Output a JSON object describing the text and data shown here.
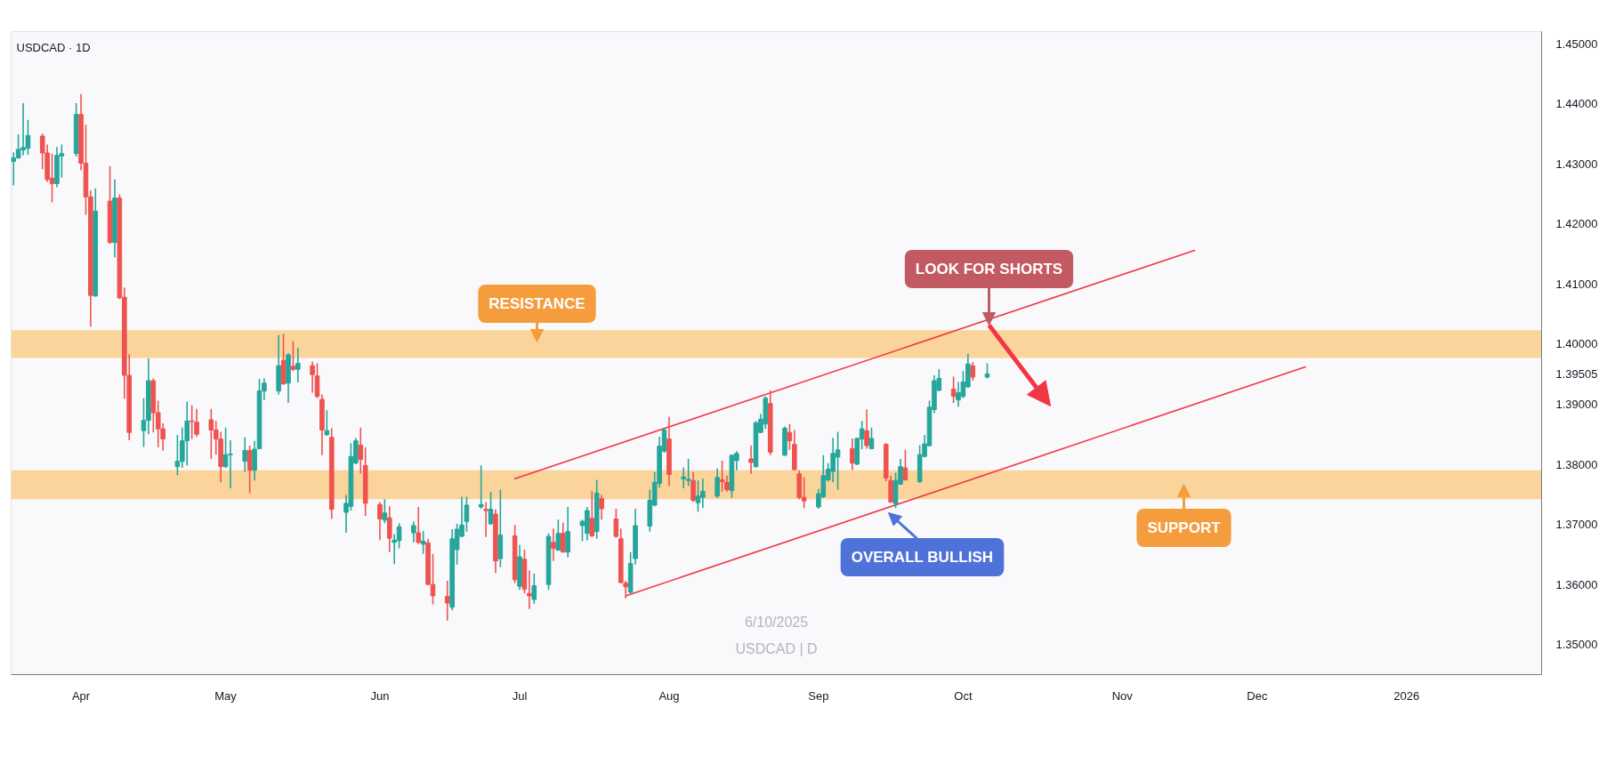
{
  "chart_data": {
    "type": "candlestick",
    "title": "USDCAD · 1D",
    "x": [
      "2025-03-18",
      "2025-03-19",
      "2025-03-20",
      "2025-03-21",
      "2025-03-24",
      "2025-03-25",
      "2025-03-26",
      "2025-03-27",
      "2025-03-28",
      "2025-03-31",
      "2025-04-01",
      "2025-04-02",
      "2025-04-03",
      "2025-04-04",
      "2025-04-07",
      "2025-04-08",
      "2025-04-09",
      "2025-04-10",
      "2025-04-11",
      "2025-04-14",
      "2025-04-15",
      "2025-04-16",
      "2025-04-17",
      "2025-04-18",
      "2025-04-21",
      "2025-04-22",
      "2025-04-23",
      "2025-04-24",
      "2025-04-25",
      "2025-04-28",
      "2025-04-29",
      "2025-04-30",
      "2025-05-01",
      "2025-05-02",
      "2025-05-05",
      "2025-05-06",
      "2025-05-07",
      "2025-05-08",
      "2025-05-09",
      "2025-05-12",
      "2025-05-13",
      "2025-05-14",
      "2025-05-15",
      "2025-05-16",
      "2025-05-19",
      "2025-05-20",
      "2025-05-21",
      "2025-05-22",
      "2025-05-23",
      "2025-05-26",
      "2025-05-27",
      "2025-05-28",
      "2025-05-29",
      "2025-05-30",
      "2025-06-02",
      "2025-06-03",
      "2025-06-04",
      "2025-06-05",
      "2025-06-06",
      "2025-06-09",
      "2025-06-10",
      "2025-06-11",
      "2025-06-12",
      "2025-06-13",
      "2025-06-16",
      "2025-06-17",
      "2025-06-18",
      "2025-06-19",
      "2025-06-20",
      "2025-06-23",
      "2025-06-24",
      "2025-06-25",
      "2025-06-26",
      "2025-06-27",
      "2025-06-30",
      "2025-07-01",
      "2025-07-02",
      "2025-07-03",
      "2025-07-04",
      "2025-07-07",
      "2025-07-08",
      "2025-07-09",
      "2025-07-10",
      "2025-07-11",
      "2025-07-14",
      "2025-07-15",
      "2025-07-16",
      "2025-07-17",
      "2025-07-18",
      "2025-07-21",
      "2025-07-22",
      "2025-07-23",
      "2025-07-24",
      "2025-07-25",
      "2025-07-28",
      "2025-07-29",
      "2025-07-30",
      "2025-07-31",
      "2025-08-01",
      "2025-08-04",
      "2025-08-05",
      "2025-08-06",
      "2025-08-07",
      "2025-08-08",
      "2025-08-11",
      "2025-08-12",
      "2025-08-13",
      "2025-08-14",
      "2025-08-15",
      "2025-08-18",
      "2025-08-19",
      "2025-08-20",
      "2025-08-21",
      "2025-08-22",
      "2025-08-25",
      "2025-08-26",
      "2025-08-27",
      "2025-08-28",
      "2025-08-29",
      "2025-09-01",
      "2025-09-02",
      "2025-09-03",
      "2025-09-04",
      "2025-09-05",
      "2025-09-08",
      "2025-09-09",
      "2025-09-10",
      "2025-09-11",
      "2025-09-12",
      "2025-09-15",
      "2025-09-16",
      "2025-09-17",
      "2025-09-18",
      "2025-09-19",
      "2025-09-22",
      "2025-09-23",
      "2025-09-24",
      "2025-09-25",
      "2025-09-26",
      "2025-09-29",
      "2025-09-30",
      "2025-10-01",
      "2025-10-02",
      "2025-10-03",
      "2025-10-06"
    ],
    "ohlc": [
      [
        1.4304,
        1.4319,
        1.4264,
        1.431
      ],
      [
        1.431,
        1.4349,
        1.4308,
        1.4324
      ],
      [
        1.4323,
        1.4401,
        1.4314,
        1.4327
      ],
      [
        1.4326,
        1.4373,
        1.4315,
        1.4347
      ],
      [
        1.4346,
        1.435,
        1.4291,
        1.4318
      ],
      [
        1.4318,
        1.4332,
        1.427,
        1.4274
      ],
      [
        1.4276,
        1.4317,
        1.4236,
        1.4267
      ],
      [
        1.4267,
        1.4328,
        1.4261,
        1.4314
      ],
      [
        1.4313,
        1.4332,
        1.4277,
        1.4317
      ],
      [
        1.4317,
        1.4401,
        1.4312,
        1.4382
      ],
      [
        1.4382,
        1.4416,
        1.4289,
        1.4301
      ],
      [
        1.4301,
        1.4365,
        1.4215,
        1.4245
      ],
      [
        1.4245,
        1.4256,
        1.4029,
        1.4081
      ],
      [
        1.408,
        1.4259,
        1.4079,
        1.4221
      ],
      [
        1.4238,
        1.4296,
        1.4167,
        1.4169
      ],
      [
        1.4169,
        1.4274,
        1.4144,
        1.4243
      ],
      [
        1.4243,
        1.4249,
        1.4075,
        1.4077
      ],
      [
        1.4078,
        1.4094,
        1.3909,
        1.3948
      ],
      [
        1.3948,
        1.3983,
        1.384,
        1.3853
      ],
      [
        1.3856,
        1.391,
        1.3829,
        1.3873
      ],
      [
        1.3873,
        1.3976,
        1.385,
        1.3939
      ],
      [
        1.3939,
        1.3943,
        1.3853,
        1.3886
      ],
      [
        1.3886,
        1.3906,
        1.3828,
        1.3859
      ],
      [
        1.3859,
        1.3868,
        1.3823,
        1.3842
      ],
      [
        1.3796,
        1.3849,
        1.3782,
        1.3805
      ],
      [
        1.3805,
        1.3861,
        1.3794,
        1.3839
      ],
      [
        1.3839,
        1.3904,
        1.3798,
        1.3872
      ],
      [
        1.3872,
        1.3898,
        1.3842,
        1.3871
      ],
      [
        1.387,
        1.3892,
        1.3846,
        1.385
      ],
      [
        1.3874,
        1.3892,
        1.3809,
        1.3857
      ],
      [
        1.3857,
        1.3872,
        1.3816,
        1.3842
      ],
      [
        1.3842,
        1.3854,
        1.377,
        1.3796
      ],
      [
        1.3796,
        1.3861,
        1.3794,
        1.3816
      ],
      [
        1.3816,
        1.384,
        1.376,
        1.3817
      ],
      [
        1.3805,
        1.3845,
        1.3787,
        1.3823
      ],
      [
        1.3823,
        1.3831,
        1.3752,
        1.379
      ],
      [
        1.379,
        1.3839,
        1.3773,
        1.3825
      ],
      [
        1.3826,
        1.3942,
        1.3825,
        1.3922
      ],
      [
        1.3922,
        1.3943,
        1.3907,
        1.3935
      ],
      [
        1.3922,
        1.4015,
        1.3916,
        1.3964
      ],
      [
        1.3973,
        1.4017,
        1.3932,
        1.3934
      ],
      [
        1.3935,
        1.3985,
        1.3902,
        1.3982
      ],
      [
        1.3963,
        1.4005,
        1.3955,
        1.3958
      ],
      [
        1.3958,
        1.3994,
        1.3936,
        1.3968
      ],
      [
        1.3964,
        1.3971,
        1.3919,
        1.3949
      ],
      [
        1.3947,
        1.3968,
        1.391,
        1.3913
      ],
      [
        1.3908,
        1.3916,
        1.3815,
        1.3857
      ],
      [
        1.3849,
        1.389,
        1.3848,
        1.3856
      ],
      [
        1.3845,
        1.386,
        1.3709,
        1.3725
      ],
      [
        1.372,
        1.3749,
        1.3686,
        1.3735
      ],
      [
        1.373,
        1.3835,
        1.3723,
        1.3813
      ],
      [
        1.3802,
        1.3844,
        1.38,
        1.3839
      ],
      [
        1.3832,
        1.3861,
        1.3785,
        1.3808
      ],
      [
        1.3798,
        1.3828,
        1.3714,
        1.3735
      ],
      [
        1.3733,
        1.3737,
        1.3674,
        1.3709
      ],
      [
        1.3707,
        1.3742,
        1.3702,
        1.3719
      ],
      [
        1.3711,
        1.373,
        1.3654,
        1.3677
      ],
      [
        1.367,
        1.3684,
        1.3634,
        1.3674
      ],
      [
        1.3673,
        1.3702,
        1.366,
        1.3696
      ],
      [
        1.3686,
        1.3705,
        1.367,
        1.3698
      ],
      [
        1.3686,
        1.3729,
        1.3667,
        1.367
      ],
      [
        1.3667,
        1.3689,
        1.3651,
        1.3672
      ],
      [
        1.3669,
        1.3676,
        1.3599,
        1.36
      ],
      [
        1.36,
        1.3651,
        1.3567,
        1.3581
      ],
      [
        1.358,
        1.3606,
        1.354,
        1.3569
      ],
      [
        1.3562,
        1.3692,
        1.3557,
        1.3676
      ],
      [
        1.3658,
        1.3701,
        1.3633,
        1.3692
      ],
      [
        1.368,
        1.3746,
        1.3679,
        1.3699
      ],
      [
        1.3705,
        1.3746,
        1.3688,
        1.3732
      ],
      [
        1.3729,
        1.3798,
        1.3726,
        1.3733
      ],
      [
        1.3725,
        1.3737,
        1.3679,
        1.3723
      ],
      [
        1.3701,
        1.3754,
        1.3699,
        1.3725
      ],
      [
        1.3717,
        1.3725,
        1.3619,
        1.3639
      ],
      [
        1.3643,
        1.3758,
        1.3629,
        1.3682
      ],
      [
        1.3681,
        1.3699,
        1.3602,
        1.3608
      ],
      [
        1.3597,
        1.3666,
        1.3591,
        1.3646
      ],
      [
        1.3642,
        1.3658,
        1.3585,
        1.3592
      ],
      [
        1.3585,
        1.3623,
        1.3559,
        1.3581
      ],
      [
        1.3575,
        1.3618,
        1.3568,
        1.3598
      ],
      [
        1.36,
        1.3685,
        1.3591,
        1.368
      ],
      [
        1.367,
        1.3693,
        1.3639,
        1.366
      ],
      [
        1.3657,
        1.3708,
        1.3656,
        1.3685
      ],
      [
        1.3685,
        1.3703,
        1.3653,
        1.3654
      ],
      [
        1.3654,
        1.3729,
        1.3645,
        1.3688
      ],
      [
        1.3698,
        1.3708,
        1.3672,
        1.3705
      ],
      [
        1.3685,
        1.3729,
        1.3673,
        1.3723
      ],
      [
        1.371,
        1.3755,
        1.3679,
        1.3681
      ],
      [
        1.3688,
        1.3774,
        1.3676,
        1.3752
      ],
      [
        1.3743,
        1.3749,
        1.3708,
        1.3726
      ],
      [
        1.3709,
        1.3726,
        1.3678,
        1.368
      ],
      [
        1.3676,
        1.3693,
        1.3602,
        1.3603
      ],
      [
        1.3602,
        1.3606,
        1.3577,
        1.3596
      ],
      [
        1.3587,
        1.3654,
        1.3585,
        1.3635
      ],
      [
        1.3643,
        1.3726,
        1.3633,
        1.3698
      ],
      [
        1.3697,
        1.3758,
        1.3688,
        1.374
      ],
      [
        1.3732,
        1.3787,
        1.373,
        1.377
      ],
      [
        1.3768,
        1.3846,
        1.3761,
        1.383
      ],
      [
        1.3822,
        1.386,
        1.3819,
        1.3857
      ],
      [
        1.3842,
        1.3879,
        1.3764,
        1.3783
      ],
      [
        1.3776,
        1.3795,
        1.376,
        1.3779
      ],
      [
        1.3773,
        1.3809,
        1.3764,
        1.3775
      ],
      [
        1.3773,
        1.3787,
        1.3737,
        1.374
      ],
      [
        1.3736,
        1.3773,
        1.3721,
        1.3747
      ],
      [
        1.3745,
        1.3776,
        1.3727,
        1.3755
      ],
      [
        1.3747,
        1.3793,
        1.3744,
        1.3778
      ],
      [
        1.3774,
        1.3806,
        1.3754,
        1.3771
      ],
      [
        1.377,
        1.3781,
        1.3754,
        1.3758
      ],
      [
        1.3756,
        1.3816,
        1.3744,
        1.3815
      ],
      [
        1.3806,
        1.3822,
        1.379,
        1.3818
      ],
      [
        1.3809,
        1.3831,
        1.3784,
        1.3803
      ],
      [
        1.3796,
        1.3872,
        1.3795,
        1.3869
      ],
      [
        1.3853,
        1.3884,
        1.3852,
        1.3875
      ],
      [
        1.3867,
        1.3913,
        1.3859,
        1.391
      ],
      [
        1.3901,
        1.3923,
        1.3815,
        1.382
      ],
      [
        1.3815,
        1.3863,
        1.3814,
        1.386
      ],
      [
        1.3853,
        1.3867,
        1.3824,
        1.3839
      ],
      [
        1.3833,
        1.3857,
        1.379,
        1.3791
      ],
      [
        1.3784,
        1.379,
        1.3742,
        1.3745
      ],
      [
        1.3745,
        1.3778,
        1.3727,
        1.3739
      ],
      [
        1.3729,
        1.3759,
        1.3726,
        1.3751
      ],
      [
        1.3746,
        1.3815,
        1.3744,
        1.3781
      ],
      [
        1.3774,
        1.3802,
        1.3771,
        1.3792
      ],
      [
        1.3788,
        1.3844,
        1.377,
        1.3818
      ],
      [
        1.3812,
        1.3854,
        1.3758,
        1.3824
      ],
      [
        1.3826,
        1.3843,
        1.379,
        1.3802
      ],
      [
        1.38,
        1.3844,
        1.3799,
        1.3843
      ],
      [
        1.3842,
        1.3872,
        1.3825,
        1.3859
      ],
      [
        1.3856,
        1.3891,
        1.3826,
        1.3831
      ],
      [
        1.3826,
        1.3861,
        1.3825,
        1.3843
      ],
      [
        1.3833,
        1.3835,
        1.3772,
        1.3777
      ],
      [
        1.3773,
        1.3781,
        1.3736,
        1.3737
      ],
      [
        1.3734,
        1.3786,
        1.3727,
        1.3773
      ],
      [
        1.3767,
        1.3809,
        1.3766,
        1.3796
      ],
      [
        1.3794,
        1.3824,
        1.3773,
        1.3774
      ],
      [
        1.3771,
        1.3832,
        1.3769,
        1.3816
      ],
      [
        1.3813,
        1.3849,
        1.3812,
        1.3834
      ],
      [
        1.3831,
        1.3906,
        1.383,
        1.3895
      ],
      [
        1.3891,
        1.3948,
        1.3885,
        1.3939
      ],
      [
        1.3923,
        1.3958,
        1.3922,
        1.3943
      ],
      [
        1.3925,
        1.3946,
        1.3902,
        1.3913
      ],
      [
        1.3907,
        1.3937,
        1.3896,
        1.3919
      ],
      [
        1.3913,
        1.3955,
        1.391,
        1.3937
      ],
      [
        1.3929,
        1.3984,
        1.3927,
        1.3967
      ],
      [
        1.3964,
        1.397,
        1.3939,
        1.3945
      ],
      [
        1.3945,
        1.3968,
        1.3943,
        1.39505
      ]
    ],
    "series": [
      {
        "type": "line",
        "color": "#f23645",
        "x": [
          "2025-06-30",
          "2025-11-18"
        ],
        "values": [
          1.3776,
          1.4156
        ]
      },
      {
        "type": "line",
        "color": "#f23645",
        "x": [
          "2025-07-23",
          "2025-12-11"
        ],
        "values": [
          1.3581,
          1.3962
        ]
      }
    ],
    "bands": [
      {
        "axis": "y",
        "from": 1.3977,
        "to": 1.4023,
        "color": "#fad49a"
      },
      {
        "axis": "y",
        "from": 1.3742,
        "to": 1.379,
        "color": "#fad49a"
      }
    ],
    "annotations": [
      "RESISTANCE",
      "LOOK FOR SHORTS",
      "OVERALL BULLISH",
      "SUPPORT",
      "6/10/2025",
      "USDCAD | D"
    ],
    "xlim": [
      "2025-03-17T12:00",
      "2026-01-29"
    ],
    "xticks": [
      {
        "value": "2025-04-01",
        "label": "Apr"
      },
      {
        "value": "2025-05-01",
        "label": "May"
      },
      {
        "value": "2025-06-02",
        "label": "Jun"
      },
      {
        "value": "2025-07-01",
        "label": "Jul"
      },
      {
        "value": "2025-08-01",
        "label": "Aug"
      },
      {
        "value": "2025-09-01",
        "label": "Sep"
      },
      {
        "value": "2025-10-01",
        "label": "Oct"
      },
      {
        "value": "2025-11-03",
        "label": "Nov"
      },
      {
        "value": "2025-12-01",
        "label": "Dec"
      },
      {
        "value": "2026-01-01",
        "label": "2026"
      }
    ],
    "ylim": [
      1.345,
      1.452
    ],
    "yticks": [
      {
        "value": 1.35,
        "label": "1.35000"
      },
      {
        "value": 1.36,
        "label": "1.36000"
      },
      {
        "value": 1.37,
        "label": "1.37000"
      },
      {
        "value": 1.38,
        "label": "1.38000"
      },
      {
        "value": 1.39,
        "label": "1.39000"
      },
      {
        "value": 1.39505,
        "label": "1.39505"
      },
      {
        "value": 1.4,
        "label": "1.40000"
      },
      {
        "value": 1.41,
        "label": "1.41000"
      },
      {
        "value": 1.42,
        "label": "1.42000"
      },
      {
        "value": 1.43,
        "label": "1.43000"
      },
      {
        "value": 1.44,
        "label": "1.44000"
      },
      {
        "value": 1.45,
        "label": "1.45000"
      }
    ]
  }
}
